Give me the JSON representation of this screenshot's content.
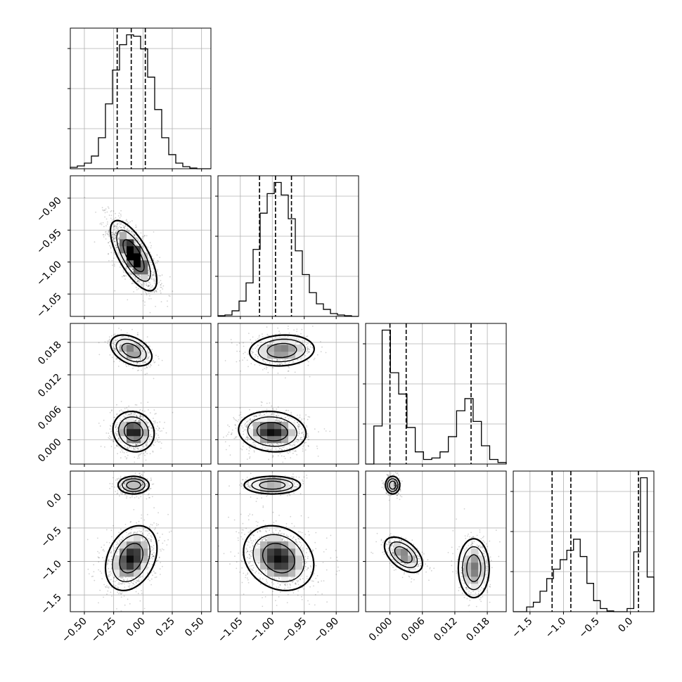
{
  "chart_data": {
    "type": "corner",
    "variables": [
      {
        "range": [
          -0.62,
          0.58
        ],
        "ticks": [
          -0.5,
          -0.25,
          0.0,
          0.25,
          0.5
        ],
        "tick_labels": [
          "−0.50",
          "−0.25",
          "0.00",
          "0.25",
          "0.50"
        ],
        "quantiles": [
          -0.22,
          -0.1,
          0.02
        ],
        "histogram": [
          1,
          2,
          4,
          9,
          22,
          46,
          70,
          88,
          95,
          94,
          85,
          65,
          42,
          22,
          10,
          4,
          1.5,
          0.5,
          0,
          0
        ]
      },
      {
        "range": [
          -1.085,
          -0.865
        ],
        "ticks": [
          -1.05,
          -1.0,
          -0.95,
          -0.9
        ],
        "tick_labels": [
          "−1.05",
          "−1.00",
          "−0.95",
          "−0.90"
        ],
        "quantiles": [
          -1.02,
          -0.995,
          -0.97
        ],
        "histogram": [
          0.5,
          1,
          4,
          11,
          24,
          48,
          74,
          88,
          96,
          87,
          70,
          47,
          30,
          17,
          9,
          5,
          2,
          1,
          0.5,
          0
        ]
      },
      {
        "range": [
          -0.0045,
          0.0215
        ],
        "ticks": [
          0.0,
          0.006,
          0.012,
          0.018
        ],
        "tick_labels": [
          "0.000",
          "0.006",
          "0.012",
          "0.018"
        ],
        "quantiles": [
          0.0,
          0.003,
          0.015
        ],
        "histogram": [
          0,
          25,
          88,
          60,
          46,
          24,
          8,
          3,
          4,
          8,
          18,
          35,
          43,
          28,
          12,
          3,
          1
        ]
      },
      {
        "range": [
          -1.75,
          0.35
        ],
        "ticks": [
          -1.5,
          -1.0,
          -0.5,
          0.0
        ],
        "tick_labels": [
          "−1.5",
          "−1.0",
          "−0.5",
          "0.0"
        ],
        "quantiles": [
          -1.17,
          -0.89,
          0.12
        ],
        "histogram": [
          0,
          0,
          3,
          6,
          13,
          21,
          27,
          33,
          39,
          46,
          35,
          18,
          7,
          2,
          0.5,
          0,
          0,
          2,
          38,
          85,
          22
        ]
      }
    ],
    "density_pairs": [
      {
        "row": 1,
        "col": 0,
        "clusters": [
          {
            "cx": -0.08,
            "cy": -0.99,
            "sx": 0.09,
            "sy": 0.025,
            "rho": -0.7,
            "w": 1
          }
        ]
      },
      {
        "row": 2,
        "col": 0,
        "clusters": [
          {
            "cx": -0.1,
            "cy": 0.0165,
            "sx": 0.08,
            "sy": 0.0013,
            "rho": -0.4,
            "w": 0.35
          },
          {
            "cx": -0.08,
            "cy": 0.0015,
            "sx": 0.08,
            "sy": 0.0017,
            "rho": -0.1,
            "w": 0.65
          }
        ]
      },
      {
        "row": 2,
        "col": 1,
        "clusters": [
          {
            "cx": -0.985,
            "cy": 0.0165,
            "sx": 0.023,
            "sy": 0.0013,
            "rho": 0.1,
            "w": 0.35
          },
          {
            "cx": -1.0,
            "cy": 0.0015,
            "sx": 0.024,
            "sy": 0.0017,
            "rho": -0.1,
            "w": 0.65
          }
        ]
      },
      {
        "row": 3,
        "col": 0,
        "clusters": [
          {
            "cx": -0.08,
            "cy": 0.14,
            "sx": 0.06,
            "sy": 0.06,
            "rho": 0,
            "w": 0.35
          },
          {
            "cx": -0.1,
            "cy": -0.95,
            "sx": 0.1,
            "sy": 0.22,
            "rho": 0.3,
            "w": 0.65
          }
        ]
      },
      {
        "row": 3,
        "col": 1,
        "clusters": [
          {
            "cx": -1.0,
            "cy": 0.14,
            "sx": 0.02,
            "sy": 0.06,
            "rho": 0,
            "w": 0.35
          },
          {
            "cx": -0.99,
            "cy": -0.95,
            "sx": 0.025,
            "sy": 0.22,
            "rho": -0.2,
            "w": 0.65
          }
        ]
      },
      {
        "row": 3,
        "col": 2,
        "clusters": [
          {
            "cx": 0.0005,
            "cy": 0.14,
            "sx": 0.0006,
            "sy": 0.06,
            "rho": 0,
            "w": 0.3
          },
          {
            "cx": 0.0025,
            "cy": -0.9,
            "sx": 0.0016,
            "sy": 0.12,
            "rho": -0.5,
            "w": 0.35
          },
          {
            "cx": 0.0155,
            "cy": -1.1,
            "sx": 0.0013,
            "sy": 0.2,
            "rho": 0,
            "w": 0.35
          }
        ]
      }
    ],
    "grid": true
  }
}
